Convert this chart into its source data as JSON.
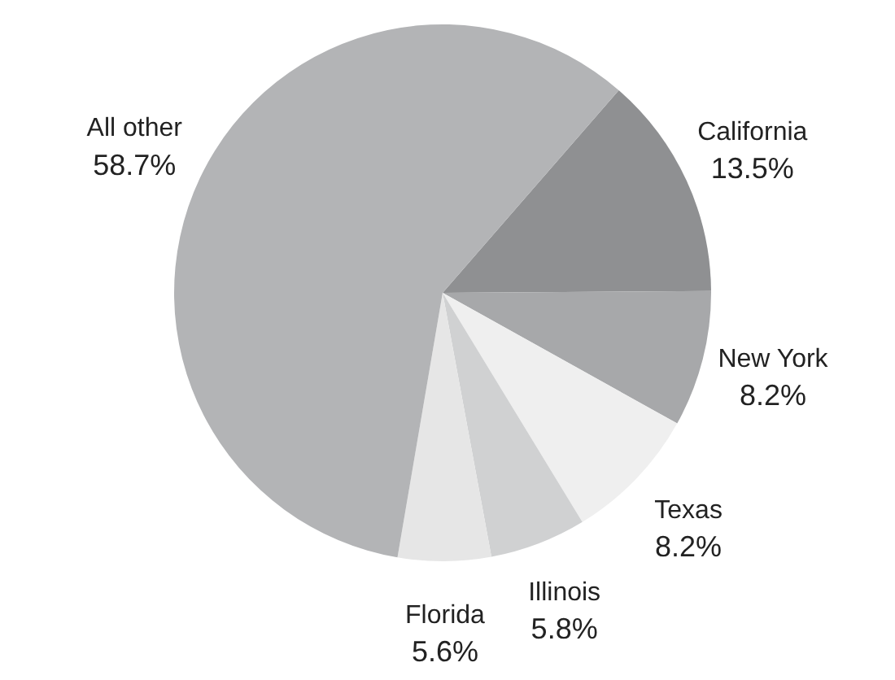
{
  "chart_data": {
    "type": "pie",
    "categories": [
      "California",
      "New York",
      "Texas",
      "Illinois",
      "Florida",
      "All other"
    ],
    "values": [
      13.5,
      8.2,
      8.2,
      5.8,
      5.6,
      58.7
    ],
    "colors": [
      "#8f9092",
      "#a7a8aa",
      "#efefef",
      "#d0d1d2",
      "#e6e6e6",
      "#b3b4b6"
    ],
    "value_labels": [
      "13.5%",
      "8.2%",
      "8.2%",
      "5.8%",
      "5.6%",
      "58.7%"
    ],
    "legend": false
  }
}
